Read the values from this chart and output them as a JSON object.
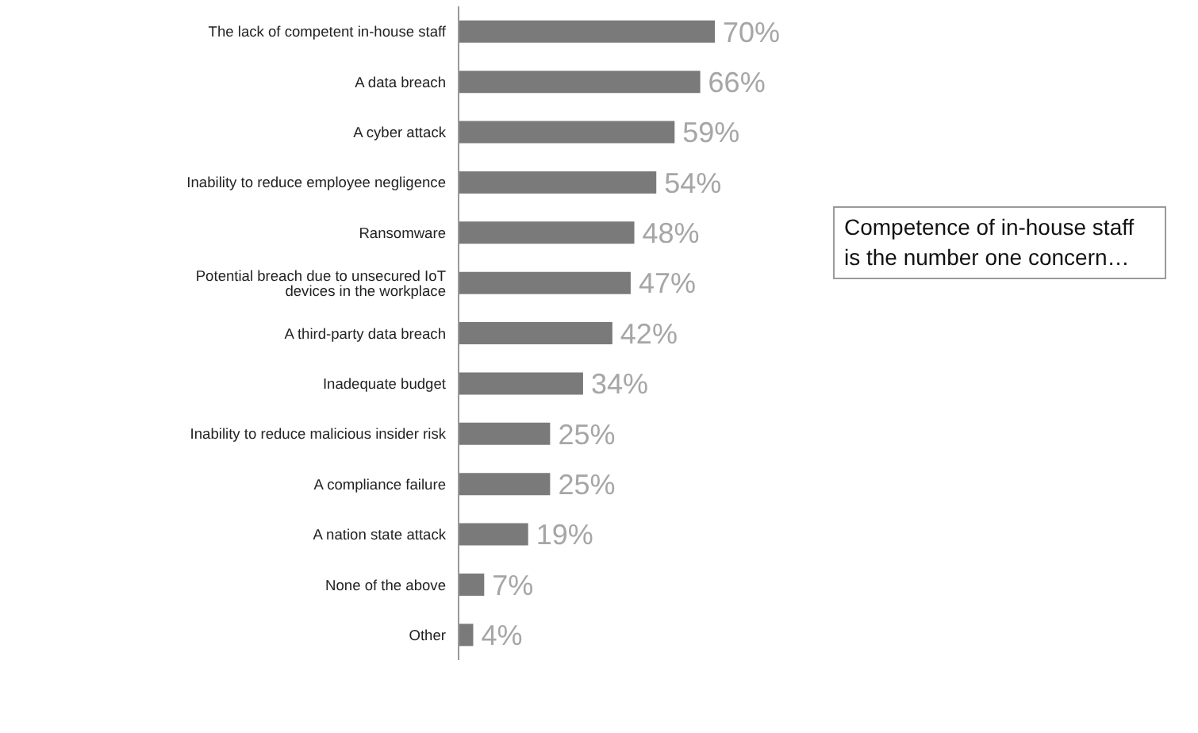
{
  "chart_data": {
    "type": "bar",
    "orientation": "horizontal",
    "categories": [
      "The lack of competent in-house staff",
      "A data breach",
      "A cyber attack",
      "Inability to reduce employee negligence",
      "Ransomware",
      "Potential breach due to unsecured IoT devices in the workplace",
      "A third-party data breach",
      "Inadequate budget",
      "Inability to reduce malicious insider risk",
      "A compliance failure",
      "A nation state attack",
      "None of the above",
      "Other"
    ],
    "values": [
      70,
      66,
      59,
      54,
      48,
      47,
      42,
      34,
      25,
      25,
      19,
      7,
      4
    ],
    "value_labels": [
      "70%",
      "66%",
      "59%",
      "54%",
      "48%",
      "47%",
      "42%",
      "34%",
      "25%",
      "25%",
      "19%",
      "7%",
      "4%"
    ],
    "color": "#7a7a7a",
    "annotations": [
      "Competence of in-house staff is the number one concern…"
    ]
  }
}
